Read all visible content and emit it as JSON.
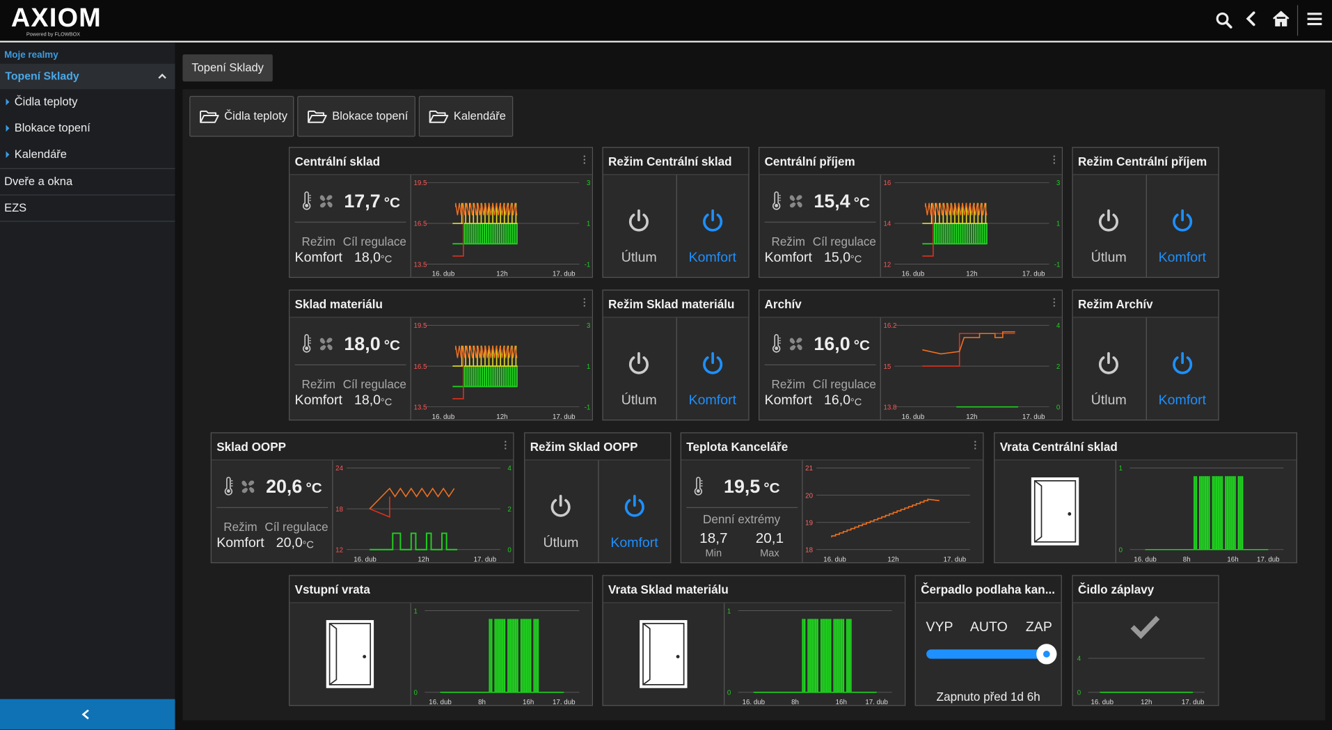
{
  "header": {
    "logo": "AXIOM",
    "tagline": "Powered by FLOWBOX"
  },
  "sidebar": {
    "section": "Moje realmy",
    "active": "Topení Sklady",
    "subitems": [
      "Čidla teploty",
      "Blokace topení",
      "Kalendáře"
    ],
    "items": [
      "Dveře a okna",
      "EZS"
    ]
  },
  "tab": "Topení Sklady",
  "folders": [
    "Čidla teploty",
    "Blokace topení",
    "Kalendáře"
  ],
  "tiles": [
    {
      "type": "thermo",
      "title": "Centrální sklad",
      "temp": "17,7",
      "unit": "°C",
      "mode_label": "Režim",
      "target_label": "Cíl regulace",
      "mode": "Komfort",
      "target": "18,0",
      "target_unit": "°C",
      "y_left": [
        "19.5",
        "16.5",
        "13.5"
      ],
      "y_right": [
        "3",
        "1",
        "-1"
      ],
      "x_labels": [
        "16. dub",
        "12h",
        "17. dub"
      ]
    },
    {
      "type": "mode",
      "title": "Režim Centrální sklad",
      "options": [
        "Útlum",
        "Komfort"
      ]
    },
    {
      "type": "thermo",
      "title": "Centrální příjem",
      "temp": "15,4",
      "unit": "°C",
      "mode_label": "Režim",
      "target_label": "Cíl regulace",
      "mode": "Komfort",
      "target": "15,0",
      "target_unit": "°C",
      "y_left": [
        "16",
        "14",
        "12"
      ],
      "y_right": [
        "3",
        "1",
        "-1"
      ],
      "x_labels": [
        "16. dub",
        "12h",
        "17. dub"
      ]
    },
    {
      "type": "mode",
      "title": "Režim Centrální příjem",
      "options": [
        "Útlum",
        "Komfort"
      ]
    },
    {
      "type": "thermo",
      "title": "Sklad materiálu",
      "temp": "18,0",
      "unit": "°C",
      "mode_label": "Režim",
      "target_label": "Cíl regulace",
      "mode": "Komfort",
      "target": "18,0",
      "target_unit": "°C",
      "y_left": [
        "19.5",
        "16.5",
        "13.5"
      ],
      "y_right": [
        "3",
        "1",
        "-1"
      ],
      "x_labels": [
        "16. dub",
        "12h",
        "17. dub"
      ]
    },
    {
      "type": "mode",
      "title": "Režim Sklad materiálu",
      "options": [
        "Útlum",
        "Komfort"
      ]
    },
    {
      "type": "thermo",
      "title": "Archív",
      "temp": "16,0",
      "unit": "°C",
      "mode_label": "Režim",
      "target_label": "Cíl regulace",
      "mode": "Komfort",
      "target": "16,0",
      "target_unit": "°C",
      "y_left": [
        "16.2",
        "15",
        "13.8"
      ],
      "y_right": [
        "4",
        "2",
        "0"
      ],
      "x_labels": [
        "16. dub",
        "12h",
        "17. dub"
      ]
    },
    {
      "type": "mode",
      "title": "Režim Archív",
      "options": [
        "Útlum",
        "Komfort"
      ]
    },
    {
      "type": "thermo",
      "title": "Sklad OOPP",
      "temp": "20,6",
      "unit": "°C",
      "mode_label": "Režim",
      "target_label": "Cíl regulace",
      "mode": "Komfort",
      "target": "20,0",
      "target_unit": "°C",
      "y_left": [
        "24",
        "18",
        "12"
      ],
      "y_right": [
        "4",
        "2",
        "0"
      ],
      "x_labels": [
        "16. dub",
        "12h",
        "17. dub"
      ]
    },
    {
      "type": "mode",
      "title": "Režim Sklad OOPP",
      "options": [
        "Útlum",
        "Komfort"
      ]
    },
    {
      "type": "office",
      "title": "Teplota Kanceláře",
      "temp": "19,5",
      "unit": "°C",
      "extremes_label": "Denní extrémy",
      "min": "18,7",
      "min_label": "Min",
      "max": "20,1",
      "max_label": "Max",
      "y_left": [
        "21",
        "20",
        "19",
        "18"
      ],
      "x_labels": [
        "16. dub",
        "12h",
        "17. dub"
      ]
    },
    {
      "type": "door",
      "title": "Vrata Centrální sklad",
      "y_left": [
        "1",
        "0"
      ],
      "x_labels": [
        "16. dub",
        "8h",
        "16h",
        "17. dub"
      ]
    },
    {
      "type": "door",
      "title": "Vstupní vrata",
      "y_left": [
        "1",
        "0"
      ],
      "x_labels": [
        "16. dub",
        "8h",
        "16h",
        "17. dub"
      ]
    },
    {
      "type": "door",
      "title": "Vrata Sklad materiálu",
      "y_left": [
        "1",
        "0"
      ],
      "x_labels": [
        "16. dub",
        "8h",
        "16h",
        "17. dub"
      ]
    },
    {
      "type": "pump",
      "title": "Čerpadlo podlaha kan...",
      "options": [
        "VYP",
        "AUTO",
        "ZAP"
      ],
      "status": "Zapnuto před 1d 6h"
    },
    {
      "type": "flood",
      "title": "Čidlo záplavy",
      "y_left": [
        "4",
        "0"
      ],
      "x_labels": [
        "16. dub",
        "12h",
        "17. dub"
      ]
    }
  ]
}
